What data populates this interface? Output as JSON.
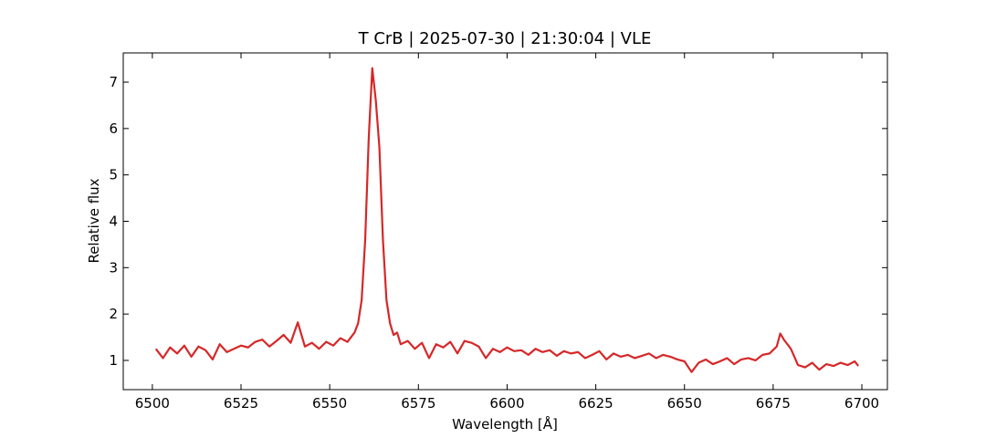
{
  "chart_data": {
    "type": "line",
    "title": "T CrB | 2025-07-30 | 21:30:04 | VLE",
    "xlabel": "Wavelength [Å]",
    "ylabel": "Relative flux",
    "color": "#d62728",
    "x": [
      6501,
      6503,
      6505,
      6507,
      6509,
      6511,
      6513,
      6515,
      6517,
      6519,
      6521,
      6523,
      6525,
      6527,
      6529,
      6531,
      6533,
      6535,
      6537,
      6539,
      6541,
      6543,
      6545,
      6547,
      6549,
      6551,
      6553,
      6555,
      6557,
      6558,
      6559,
      6560,
      6561,
      6562,
      6563,
      6564,
      6565,
      6566,
      6567,
      6568,
      6569,
      6570,
      6572,
      6574,
      6576,
      6578,
      6580,
      6582,
      6584,
      6586,
      6588,
      6590,
      6592,
      6594,
      6596,
      6598,
      6600,
      6602,
      6604,
      6606,
      6608,
      6610,
      6612,
      6614,
      6616,
      6618,
      6620,
      6622,
      6624,
      6626,
      6628,
      6630,
      6632,
      6634,
      6636,
      6638,
      6640,
      6642,
      6644,
      6646,
      6648,
      6650,
      6652,
      6654,
      6656,
      6658,
      6660,
      6662,
      6664,
      6666,
      6668,
      6670,
      6672,
      6674,
      6676,
      6677,
      6678,
      6680,
      6682,
      6684,
      6686,
      6688,
      6690,
      6692,
      6694,
      6696,
      6698,
      6699
    ],
    "values": [
      1.25,
      1.05,
      1.28,
      1.15,
      1.32,
      1.08,
      1.3,
      1.22,
      1.02,
      1.35,
      1.18,
      1.25,
      1.32,
      1.28,
      1.4,
      1.45,
      1.3,
      1.42,
      1.55,
      1.38,
      1.82,
      1.3,
      1.38,
      1.25,
      1.4,
      1.32,
      1.48,
      1.4,
      1.6,
      1.8,
      2.3,
      3.6,
      5.8,
      7.3,
      6.6,
      5.6,
      3.6,
      2.3,
      1.8,
      1.55,
      1.6,
      1.35,
      1.42,
      1.25,
      1.38,
      1.05,
      1.35,
      1.28,
      1.4,
      1.15,
      1.42,
      1.38,
      1.3,
      1.05,
      1.25,
      1.18,
      1.28,
      1.2,
      1.22,
      1.12,
      1.25,
      1.18,
      1.22,
      1.1,
      1.2,
      1.15,
      1.18,
      1.05,
      1.12,
      1.2,
      1.02,
      1.15,
      1.08,
      1.12,
      1.05,
      1.1,
      1.15,
      1.05,
      1.12,
      1.08,
      1.02,
      0.98,
      0.75,
      0.95,
      1.02,
      0.92,
      0.98,
      1.05,
      0.92,
      1.02,
      1.05,
      1.0,
      1.12,
      1.15,
      1.3,
      1.58,
      1.45,
      1.25,
      0.9,
      0.85,
      0.95,
      0.8,
      0.92,
      0.88,
      0.95,
      0.9,
      0.98,
      0.88
    ],
    "xlim": [
      6491.8,
      6707.2
    ],
    "ylim": [
      0.37,
      7.63
    ],
    "xticks": [
      6500,
      6525,
      6550,
      6575,
      6600,
      6625,
      6650,
      6675,
      6700
    ],
    "yticks": [
      1,
      2,
      3,
      4,
      5,
      6,
      7
    ]
  }
}
